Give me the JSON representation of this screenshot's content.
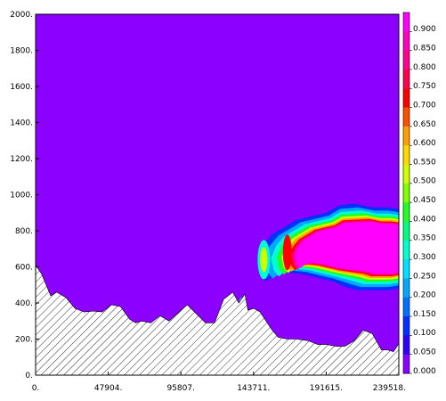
{
  "chart_data": {
    "type": "heatmap",
    "title": "",
    "xlabel": "",
    "ylabel": "",
    "xlim": [
      0,
      239518
    ],
    "ylim": [
      0,
      2000
    ],
    "x_ticks": [
      "0.",
      "47904.",
      "95807.",
      "143711.",
      "191615.",
      "239518."
    ],
    "y_ticks": [
      "0.",
      "200.",
      "400.",
      "600.",
      "800.",
      "1000.",
      "1200.",
      "1400.",
      "1600.",
      "1800.",
      "2000."
    ],
    "x_tick_values": [
      0,
      47904,
      95807,
      143711,
      191615,
      239518
    ],
    "y_tick_values": [
      0,
      200,
      400,
      600,
      800,
      1000,
      1200,
      1400,
      1600,
      1800,
      2000
    ],
    "background_value": 0.0,
    "background_color": "#8B00FF",
    "colorbar": {
      "labels": [
        "0.900",
        "0.850",
        "0.800",
        "0.750",
        "0.700",
        "0.650",
        "0.600",
        "0.550",
        "0.500",
        "0.450",
        "0.400",
        "0.350",
        "0.300",
        "0.250",
        "0.200",
        "0.150",
        "0.100",
        "0.050",
        "0.000"
      ],
      "colors": [
        "#FF00FF",
        "#FF00C0",
        "#FF0090",
        "#FF0050",
        "#FF0000",
        "#FF5000",
        "#FFA000",
        "#FFD800",
        "#D0FF00",
        "#80FF00",
        "#20FF20",
        "#00FF80",
        "#00FFD0",
        "#00E0FF",
        "#00A8FF",
        "#0070FF",
        "#0030FF",
        "#3000FF",
        "#8B00FF"
      ]
    },
    "terrain": {
      "x": [
        0,
        4000,
        10000,
        14000,
        20000,
        26000,
        32000,
        38000,
        44000,
        50000,
        56000,
        62000,
        66000,
        70000,
        76000,
        82000,
        88000,
        92000,
        96000,
        100000,
        106000,
        112000,
        118000,
        124000,
        130000,
        134000,
        138000,
        140000,
        144000,
        148000,
        152000,
        156000,
        160000,
        166000,
        172000,
        180000,
        186000,
        192000,
        198000,
        204000,
        210000,
        216000,
        222000,
        228000,
        232000,
        236000,
        239518
      ],
      "y": [
        610,
        560,
        440,
        460,
        430,
        370,
        350,
        355,
        350,
        390,
        380,
        310,
        290,
        300,
        290,
        330,
        300,
        330,
        360,
        390,
        340,
        290,
        290,
        420,
        460,
        400,
        450,
        360,
        370,
        350,
        300,
        250,
        210,
        200,
        200,
        190,
        170,
        170,
        160,
        160,
        190,
        250,
        230,
        140,
        140,
        130,
        175
      ]
    },
    "max_field": {
      "x_range": [
        145000,
        239518
      ],
      "y_range": [
        400,
        960
      ],
      "peak_value": 0.95,
      "peak_color": "#FF00FF"
    }
  }
}
